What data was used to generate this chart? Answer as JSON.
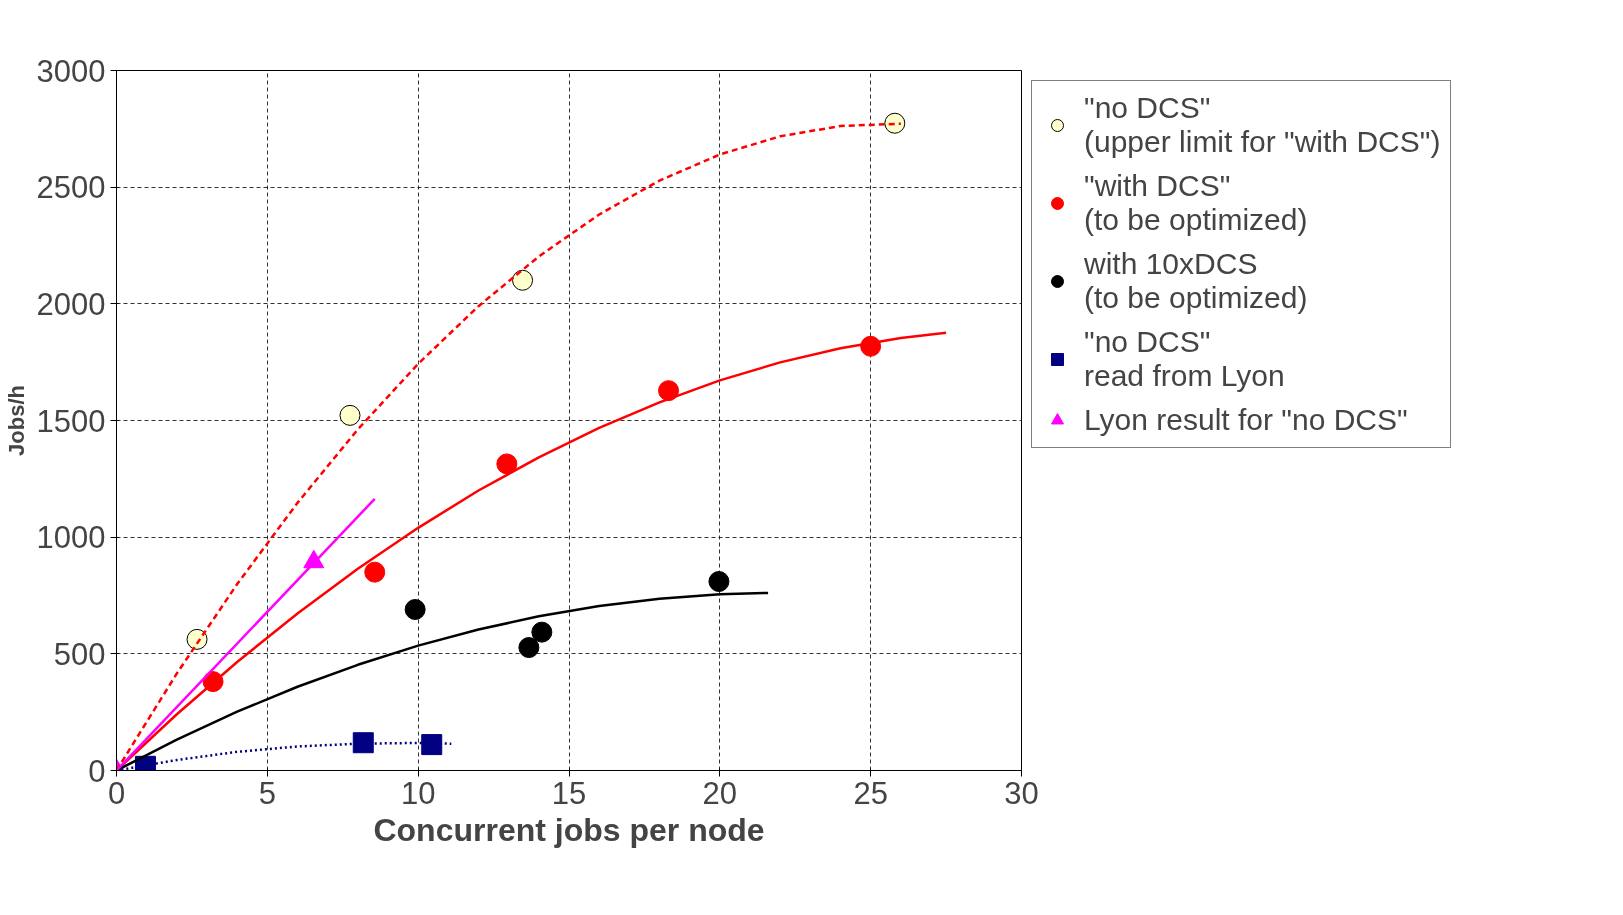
{
  "chart_data": {
    "type": "scatter",
    "xlabel": "Concurrent jobs per node",
    "ylabel": "Jobs/h",
    "xlim": [
      0,
      30
    ],
    "ylim": [
      0,
      3000
    ],
    "xticks": [
      0,
      5,
      10,
      15,
      20,
      25,
      30
    ],
    "yticks": [
      0,
      500,
      1000,
      1500,
      2000,
      2500,
      3000
    ],
    "grid": true,
    "legend": "top right",
    "series": [
      {
        "name": "\"no DCS\"\n(upper limit for \"with DCS\")",
        "marker": "circle",
        "color": "#ffffcc",
        "x": [
          2.67,
          7.74,
          13.46,
          25.8
        ],
        "values": [
          562,
          1522,
          2101,
          2774
        ]
      },
      {
        "name": "\"with DCS\"\n(to be optimized)",
        "marker": "circle",
        "color": "#ff0000",
        "x": [
          3.2,
          8.56,
          12.94,
          18.3,
          25.0
        ],
        "values": [
          381,
          850,
          1314,
          1628,
          1818
        ]
      },
      {
        "name": "with 10xDCS\n(to be optimized)",
        "marker": "circle",
        "color": "#000000",
        "x": [
          9.9,
          13.67,
          14.1,
          19.97
        ],
        "values": [
          690,
          527,
          593,
          810
        ]
      },
      {
        "name": "\"no DCS\"\nread from Lyon",
        "marker": "square",
        "color": "#000080",
        "x": [
          0.96,
          8.18,
          10.45
        ],
        "values": [
          18,
          119,
          111
        ]
      },
      {
        "name": "Lyon result for \"no DCS\"",
        "marker": "triangle",
        "color": "#ff00ff",
        "x": [
          0,
          6.54
        ],
        "values": [
          0,
          894
        ]
      },
      {
        "type": "line",
        "line_style": "dashed",
        "color": "#ff0000",
        "x": [
          0,
          2,
          4,
          6,
          8,
          10,
          12,
          14,
          16,
          18,
          20,
          22,
          24,
          26
        ],
        "values": [
          0,
          416,
          799,
          1147,
          1462,
          1743,
          1990,
          2203,
          2383,
          2528,
          2640,
          2718,
          2762,
          2772
        ]
      },
      {
        "type": "line",
        "line_style": "solid",
        "color": "#ff0000",
        "x": [
          0,
          2,
          4,
          6,
          8,
          10,
          12,
          14,
          16,
          18,
          20,
          22,
          24,
          26,
          27.5
        ],
        "values": [
          0,
          241,
          465,
          673,
          865,
          1040,
          1200,
          1342,
          1468,
          1578,
          1672,
          1749,
          1810,
          1854,
          1876
        ]
      },
      {
        "type": "line",
        "line_style": "solid",
        "color": "#000000",
        "x": [
          0,
          2,
          4,
          6,
          8,
          10,
          12,
          14,
          16,
          18,
          20,
          21.6
        ],
        "values": [
          0,
          132,
          252,
          359,
          453,
          535,
          604,
          661,
          705,
          736,
          755,
          761
        ]
      },
      {
        "type": "line",
        "line_style": "dotted",
        "color": "#000080",
        "x": [
          0,
          2,
          4,
          6,
          8,
          10,
          11.1
        ],
        "values": [
          0,
          45,
          80,
          103,
          115,
          118,
          115
        ]
      },
      {
        "type": "line",
        "line_style": "solid",
        "color": "#ff00ff",
        "x": [
          0,
          8.56
        ],
        "values": [
          0,
          1164
        ]
      }
    ]
  }
}
